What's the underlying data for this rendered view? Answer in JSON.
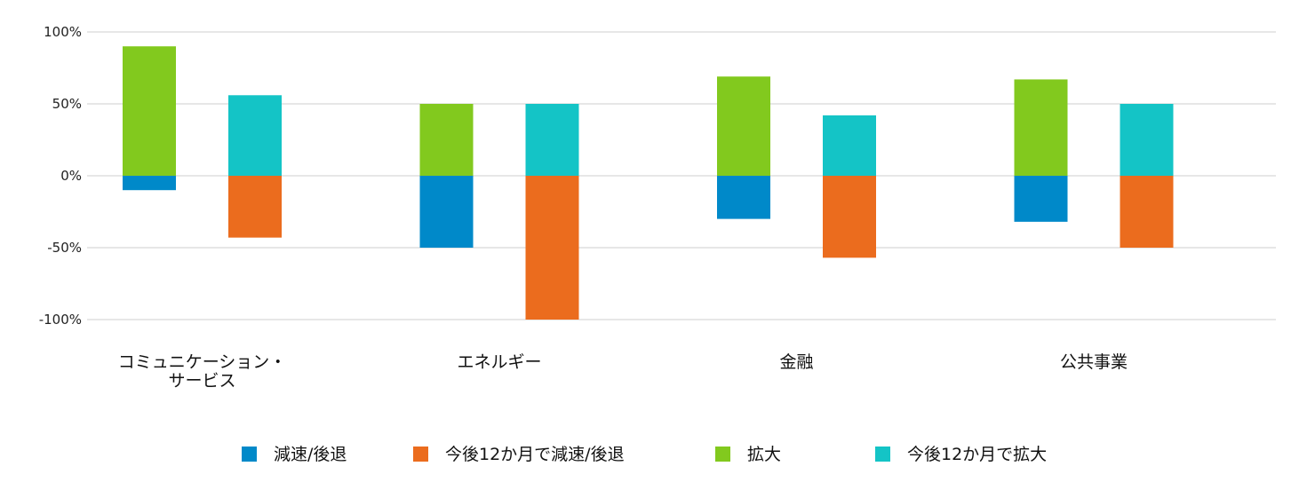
{
  "chart_data": {
    "type": "bar",
    "categories": [
      [
        "コミュニケーション・",
        "サービス"
      ],
      [
        "エネルギー"
      ],
      [
        "金融"
      ],
      [
        "公共事業"
      ]
    ],
    "series": [
      {
        "name": "減速/後退",
        "color": "#0089c9",
        "values": [
          -10,
          -50,
          -30,
          -32
        ]
      },
      {
        "name": "今後12か月で減速/後退",
        "color": "#eb6c1e",
        "values": [
          -43,
          -100,
          -57,
          -50
        ]
      },
      {
        "name": "拡大",
        "color": "#82c91e",
        "values": [
          90,
          50,
          69,
          67
        ]
      },
      {
        "name": "今後12か月で拡大",
        "color": "#14c4c6",
        "values": [
          56,
          50,
          42,
          50
        ]
      }
    ],
    "bar_groups": [
      {
        "series": [
          "拡大",
          "減速/後退"
        ]
      },
      {
        "series": [
          "今後12か月で拡大",
          "今後12か月で減速/後退"
        ]
      }
    ],
    "ylim": [
      -100,
      100
    ],
    "yticks": [
      100,
      50,
      0,
      -50,
      -100
    ],
    "ytick_labels": [
      "100%",
      "50%",
      "0%",
      "-50%",
      "-100%"
    ],
    "grid": true,
    "legend_position": "bottom"
  }
}
